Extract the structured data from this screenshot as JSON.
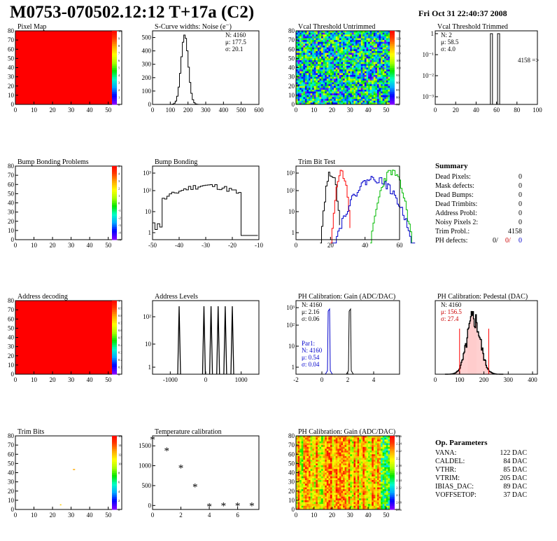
{
  "header": {
    "title": "M0753-070502.12:12 T+17a (C2)",
    "date": "Fri Oct 31 22:40:37 2008"
  },
  "colors": {
    "red": "#ff0000",
    "blue": "#0000cc",
    "green": "#00bb00",
    "black": "#000000"
  },
  "chart_data": [
    {
      "id": "pixel-map",
      "type": "heatmap",
      "title": "Pixel Map",
      "xlim": [
        0,
        52
      ],
      "ylim": [
        0,
        80
      ],
      "xticks": [
        "0",
        "10",
        "20",
        "30",
        "40",
        "50"
      ],
      "yticks": [
        "0",
        "10",
        "20",
        "30",
        "40",
        "50",
        "60",
        "70",
        "80"
      ],
      "uniform_value": 10,
      "palette_labels": [
        "10",
        "9",
        "8",
        "7",
        "6",
        "5",
        "4",
        "3",
        "2",
        "1",
        "0"
      ]
    },
    {
      "id": "scurve-noise",
      "type": "histogram",
      "title": "S-Curve widths: Noise (e⁻)",
      "xlim": [
        0,
        600
      ],
      "ylim": [
        0,
        550
      ],
      "xticks": [
        "0",
        "100",
        "200",
        "300",
        "400",
        "500",
        "600"
      ],
      "yticks": [
        "0",
        "100",
        "200",
        "300",
        "400",
        "500"
      ],
      "stats": [
        "N: 4160",
        "μ: 177.5",
        "σ: 20.1"
      ],
      "gauss": {
        "mean": 177.5,
        "sigma": 20.1,
        "peak": 520
      }
    },
    {
      "id": "vcal-untrimmed",
      "type": "heatmap",
      "title": "Vcal Threshold Untrimmed",
      "xlim": [
        0,
        52
      ],
      "ylim": [
        0,
        80
      ],
      "xticks": [
        "0",
        "10",
        "20",
        "30",
        "40",
        "50"
      ],
      "yticks": [
        "0",
        "10",
        "20",
        "30",
        "40",
        "50",
        "60",
        "70",
        "80"
      ],
      "palette_labels": [
        "125",
        "120",
        "115",
        "110",
        "105",
        "100",
        "95",
        "90",
        "85",
        "80",
        "75"
      ]
    },
    {
      "id": "vcal-trimmed",
      "type": "bar",
      "title": "Vcal Threshold Trimmed",
      "log_y": true,
      "xlim": [
        0,
        100
      ],
      "xticks": [
        "0",
        "20",
        "40",
        "60",
        "80",
        "100"
      ],
      "yticks": [
        "1",
        "10⁻¹",
        "10⁻²",
        "10⁻³"
      ],
      "stats": [
        "N:    2",
        "μ: 58.5",
        "σ:  4.0"
      ],
      "overflow_label": "4158 =>",
      "bins": [
        {
          "x": 55,
          "y": 1
        },
        {
          "x": 62,
          "y": 1
        }
      ]
    },
    {
      "id": "bump-problems",
      "type": "heatmap",
      "title": "Bump Bonding Problems",
      "xlim": [
        0,
        52
      ],
      "ylim": [
        0,
        80
      ],
      "xticks": [
        "0",
        "10",
        "20",
        "30",
        "40",
        "50"
      ],
      "yticks": [
        "0",
        "10",
        "20",
        "30",
        "40",
        "50",
        "60",
        "70",
        "80"
      ],
      "palette_labels": [
        "5",
        "4",
        "3",
        "2",
        "1",
        "0",
        "-1",
        "-2",
        "-3",
        "-4",
        "-5"
      ]
    },
    {
      "id": "bump-bonding",
      "type": "histogram",
      "title": "Bump Bonding",
      "log_y": true,
      "xlim": [
        -50,
        -10
      ],
      "xticks": [
        "-50",
        "-40",
        "-30",
        "-20",
        "-10"
      ],
      "yticks": [
        "1",
        "10",
        "10²",
        "10³"
      ]
    },
    {
      "id": "trim-bit-test",
      "type": "histogram",
      "title": "Trim Bit Test",
      "log_y": true,
      "xlim": [
        0,
        60
      ],
      "xticks": [
        "0",
        "20",
        "40",
        "60"
      ],
      "yticks": [
        "1",
        "10",
        "10²",
        "10³"
      ],
      "series": [
        {
          "color": "#000000",
          "mean": 20,
          "sigma": 1.5,
          "peak": 1400
        },
        {
          "color": "#ff0000",
          "mean": 26,
          "sigma": 1.5,
          "peak": 1300
        },
        {
          "color": "#0000cc",
          "mean": 45,
          "sigma": 6,
          "peak": 700
        },
        {
          "color": "#00bb00",
          "mean": 55,
          "sigma": 3,
          "peak": 1500
        }
      ]
    },
    {
      "id": "summary",
      "type": "table",
      "title": "Summary",
      "rows": [
        {
          "label": "Dead Pixels:",
          "value": "0"
        },
        {
          "label": "Mask defects:",
          "value": "0"
        },
        {
          "label": "Dead Bumps:",
          "value": "0"
        },
        {
          "label": "Dead Trimbits:",
          "value": "0"
        },
        {
          "label": "Address Probl:",
          "value": "0"
        },
        {
          "label": "Noisy Pixels 2:",
          "value": "0"
        },
        {
          "label": "Trim Probl.:",
          "value": "4158"
        }
      ],
      "ph_defects": {
        "label": "PH defects:",
        "v1": "0/",
        "v2": "0/",
        "v3": "0"
      }
    },
    {
      "id": "address-decoding",
      "type": "heatmap",
      "title": "Address decoding",
      "xlim": [
        0,
        52
      ],
      "ylim": [
        0,
        80
      ],
      "xticks": [
        "0",
        "10",
        "20",
        "30",
        "40",
        "50"
      ],
      "yticks": [
        "0",
        "10",
        "20",
        "30",
        "40",
        "50",
        "60",
        "70",
        "80"
      ],
      "uniform_value": 1,
      "palette_labels": [
        "1",
        "0.9",
        "0.8",
        "0.7",
        "0.6",
        "0.5",
        "0.4",
        "0.3",
        "0.2",
        "0.1",
        "0"
      ]
    },
    {
      "id": "address-levels",
      "type": "histogram",
      "title": "Address Levels",
      "log_y": true,
      "xlim": [
        -1500,
        1500
      ],
      "xticks": [
        "-1000",
        "0",
        "1000"
      ],
      "yticks": [
        "1",
        "10",
        "10²"
      ],
      "peaks": [
        -750,
        -50,
        150,
        350,
        550,
        750
      ]
    },
    {
      "id": "ph-gain",
      "type": "histogram",
      "title": "PH Calibration: Gain (ADC/DAC)",
      "log_y": true,
      "xlim": [
        -2,
        6
      ],
      "xticks": [
        "-2",
        "0",
        "2",
        "4"
      ],
      "yticks": [
        "1",
        "10",
        "10²",
        "10³"
      ],
      "stats": [
        "N: 4160",
        "μ: 2.16",
        "σ: 0.06"
      ],
      "par_stats": [
        "Par1:",
        "N: 4160",
        "μ: 0.54",
        "σ: 0.04"
      ],
      "series": [
        {
          "color": "#000000",
          "mean": 2.16,
          "sigma": 0.06
        },
        {
          "color": "#0000cc",
          "mean": 0.54,
          "sigma": 0.04
        }
      ]
    },
    {
      "id": "ph-pedestal",
      "type": "histogram",
      "title": "PH Calibration: Pedestal (DAC)",
      "xlim": [
        0,
        420
      ],
      "xticks": [
        "0",
        "100",
        "200",
        "300",
        "400"
      ],
      "stats": [
        "N: 4160",
        "μ: 156.5",
        "σ: 27.4"
      ],
      "gauss": {
        "mean": 156.5,
        "sigma": 27.4
      }
    },
    {
      "id": "trim-bits",
      "type": "heatmap",
      "title": "Trim Bits",
      "xlim": [
        0,
        52
      ],
      "ylim": [
        0,
        80
      ],
      "xticks": [
        "0",
        "10",
        "20",
        "30",
        "40",
        "50"
      ],
      "yticks": [
        "0",
        "10",
        "20",
        "30",
        "40",
        "50",
        "60",
        "70",
        "80"
      ],
      "palette_labels": [
        "16",
        "14",
        "12",
        "10",
        "8",
        "6",
        "4",
        "2",
        "0"
      ]
    },
    {
      "id": "temperature-calibration",
      "type": "scatter",
      "title": "Temperature calibration",
      "xlim": [
        0,
        7.5
      ],
      "ylim": [
        -100,
        1750
      ],
      "xticks": [
        "0",
        "2",
        "4",
        "6"
      ],
      "yticks": [
        "0",
        "500",
        "1000",
        "1500"
      ],
      "x": [
        0,
        1,
        2,
        3,
        4,
        5,
        6,
        7
      ],
      "y": [
        1660,
        1380,
        950,
        470,
        -20,
        0,
        0,
        0
      ]
    },
    {
      "id": "ph-gain-map",
      "type": "heatmap",
      "title": "PH Calibration: Gain (ADC/DAC)",
      "xlim": [
        0,
        52
      ],
      "ylim": [
        0,
        80
      ],
      "xticks": [
        "0",
        "10",
        "20",
        "30",
        "40",
        "50"
      ],
      "yticks": [
        "0",
        "10",
        "20",
        "30",
        "40",
        "50",
        "60",
        "70",
        "80"
      ],
      "palette_labels": [
        "2.26",
        "2.24",
        "2.22",
        "2.2",
        "2.18",
        "2.16",
        "2.14",
        "2.12",
        "2.1",
        "2.08",
        "2.06"
      ]
    },
    {
      "id": "op-parameters",
      "type": "table",
      "title": "Op. Parameters",
      "rows": [
        {
          "label": "VANA:",
          "value": "122 DAC"
        },
        {
          "label": "CALDEL:",
          "value": "84 DAC"
        },
        {
          "label": "VTHR:",
          "value": "85 DAC"
        },
        {
          "label": "VTRIM:",
          "value": "205 DAC"
        },
        {
          "label": "IBIAS_DAC:",
          "value": "89 DAC"
        },
        {
          "label": "VOFFSETOP:",
          "value": "37 DAC"
        }
      ]
    }
  ]
}
